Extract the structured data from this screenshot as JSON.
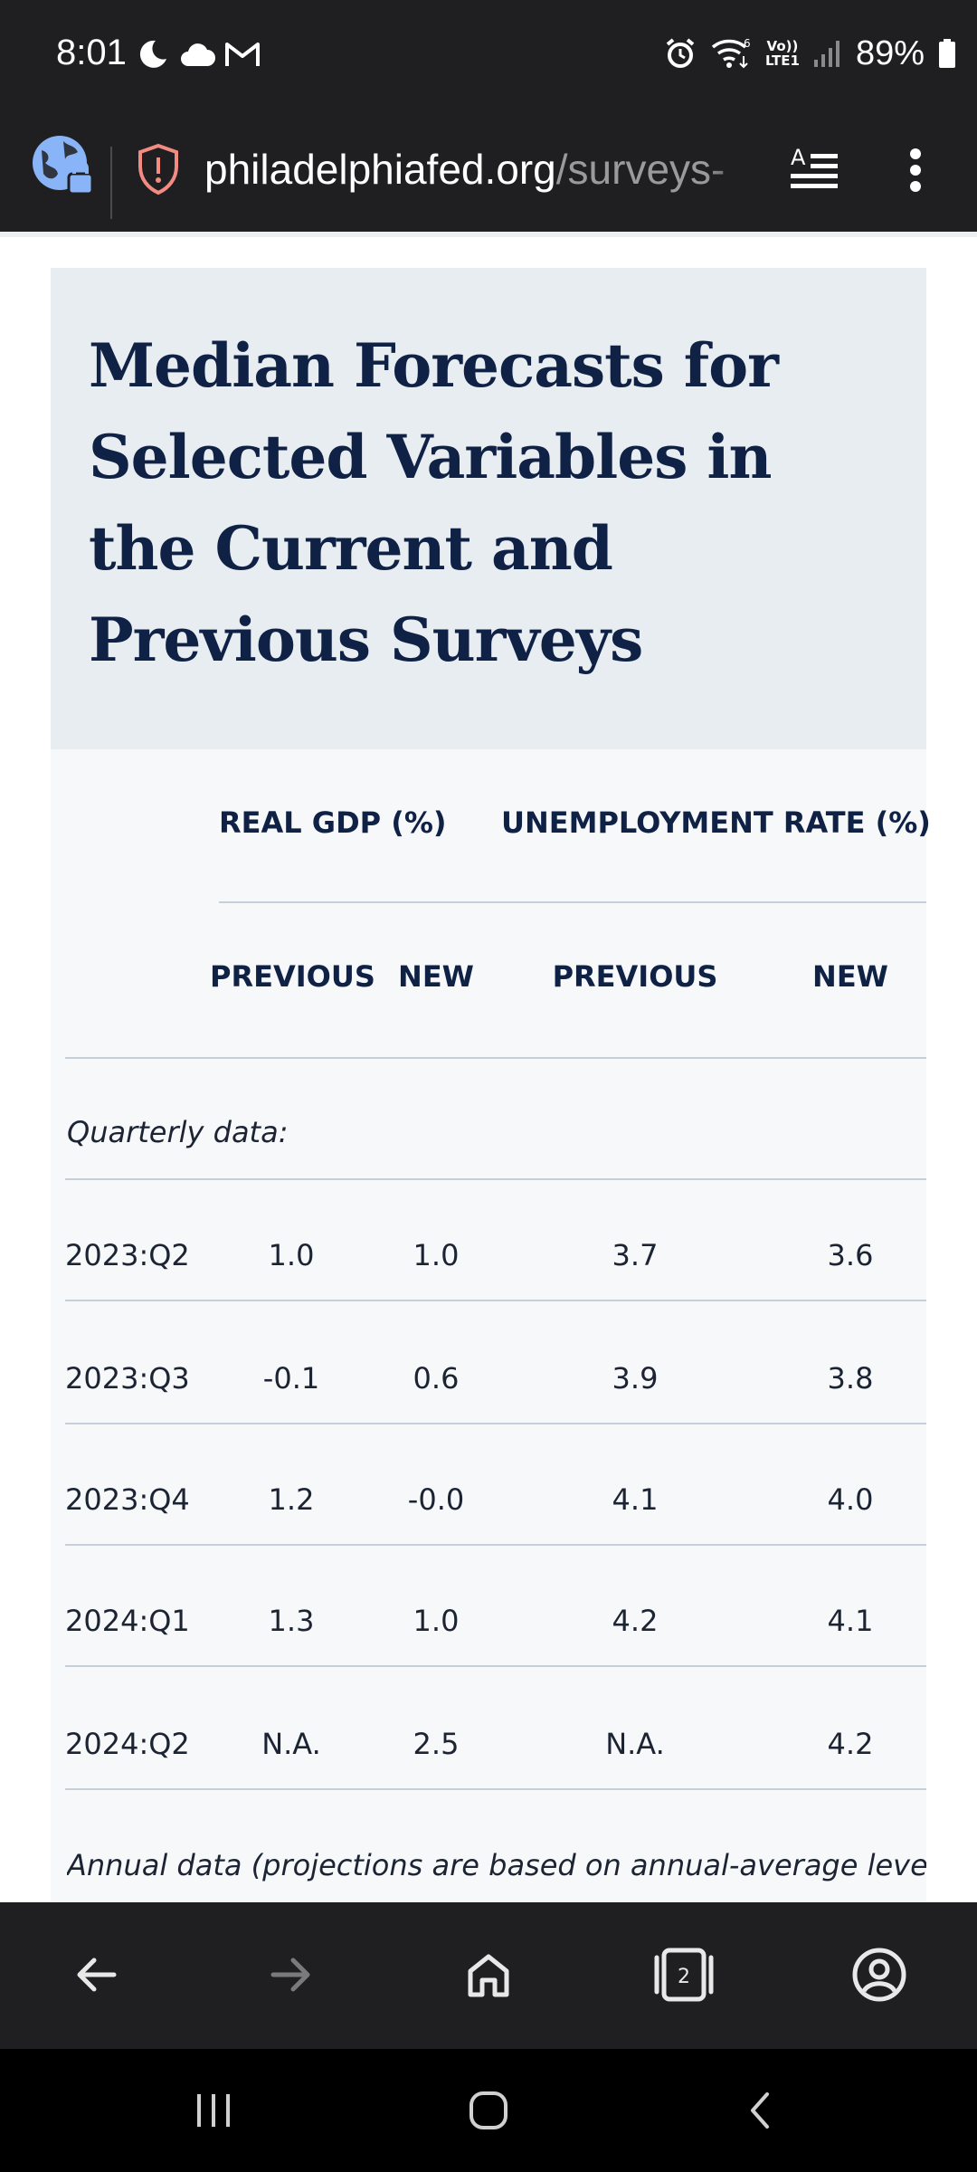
{
  "status_bar": {
    "time": "8:01",
    "battery": "89%",
    "icons_left": [
      "do-not-disturb-moon-icon",
      "cloud-icon",
      "gmail-icon"
    ],
    "icons_right": [
      "alarm-icon",
      "wifi-icon",
      "volte-lte-icon",
      "signal-icon",
      "battery-icon"
    ],
    "volte_text": "Vo))",
    "lte_text": "LTE1",
    "wifi_badge": "6"
  },
  "browser": {
    "url_host": "philadelphiafed.org",
    "url_path": "/surveys-",
    "icons": [
      "globe-lock-icon",
      "shield-warning-icon",
      "reader-mode-icon",
      "more-vert-icon"
    ]
  },
  "page": {
    "title": "Median Forecasts for Selected Variables in the Current and Previous Surveys"
  },
  "table": {
    "group_headers": [
      "REAL GDP (%)",
      "UNEMPLOYMENT RATE (%)"
    ],
    "sub_headers": [
      "PREVIOUS",
      "NEW",
      "PREVIOUS",
      "NEW"
    ],
    "quarterly_label": "Quarterly data:",
    "rows": [
      {
        "label": "2023:Q2",
        "cells": [
          "1.0",
          "1.0",
          "3.7",
          "3.6"
        ]
      },
      {
        "label": "2023:Q3",
        "cells": [
          "-0.1",
          "0.6",
          "3.9",
          "3.8"
        ]
      },
      {
        "label": "2023:Q4",
        "cells": [
          "1.2",
          "-0.0",
          "4.1",
          "4.0"
        ]
      },
      {
        "label": "2024:Q1",
        "cells": [
          "1.3",
          "1.0",
          "4.2",
          "4.1"
        ]
      },
      {
        "label": "2024:Q2",
        "cells": [
          "N.A.",
          "2.5",
          "N.A.",
          "4.2"
        ]
      }
    ],
    "annual_label": "Annual data (projections are based on annual-average leve"
  },
  "bottom_nav": {
    "items": [
      "back-arrow-icon",
      "forward-arrow-icon",
      "home-icon",
      "tabs-icon",
      "account-icon"
    ],
    "tab_count": "2"
  },
  "system_nav": {
    "items": [
      "recent-apps-icon",
      "home-circle-icon",
      "back-chevron-icon"
    ]
  }
}
